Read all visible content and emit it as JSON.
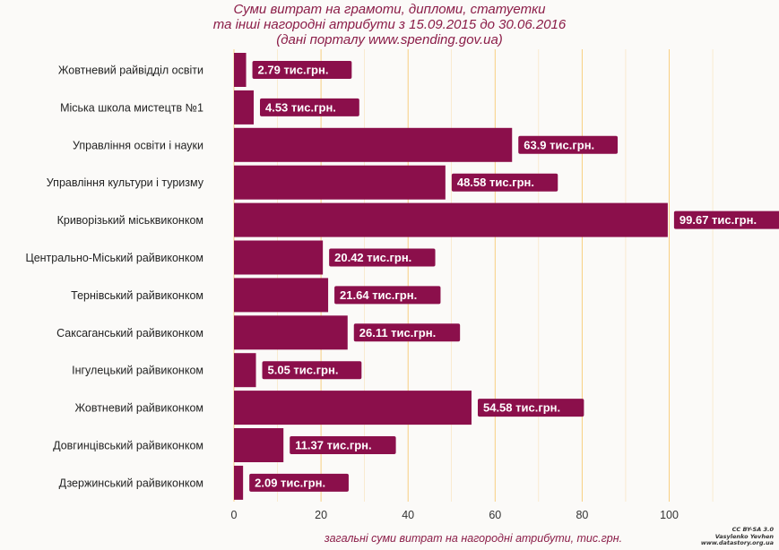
{
  "title_lines": [
    "Суми витрат на грамоти, дипломи, статуетки",
    "та інші нагородні атрибути з 15.09.2015 до 30.06.2016",
    "(дані порталу www.spending.gov.ua)"
  ],
  "credit_lines": [
    "CC BY-SA 3.0",
    "Vasylenko Yevhen",
    "www.datastory.org.ua"
  ],
  "colors": {
    "bar": "#8b0f4b",
    "title": "#8b1d48",
    "grid": "#f5b94a",
    "label_text": "#ffffff"
  },
  "chart_data": {
    "type": "bar",
    "orientation": "horizontal",
    "title": "Суми витрат на грамоти, дипломи, статуетки та інші нагородні атрибути з 15.09.2015 до 30.06.2016 (дані порталу www.spending.gov.ua)",
    "xlabel": "загальні суми витрат на нагородні атрибути, тис.грн.",
    "ylabel": "",
    "xlim": [
      0,
      110
    ],
    "xticks": [
      0,
      20,
      40,
      60,
      80,
      100
    ],
    "grid": true,
    "categories": [
      "Жовтневий райвідділ освіти",
      "Міська школа мистецтв №1",
      "Управління освіти і науки",
      "Управління культури і туризму",
      "Криворізький міськвиконком",
      "Центрально-Міський райвиконком",
      "Тернівський райвиконком",
      "Саксаганський райвиконком",
      "Інгулецький райвиконком",
      "Жовтневий райвиконком",
      "Довгинцівський райвиконком",
      "Дзержинський райвиконком"
    ],
    "values": [
      2.79,
      4.53,
      63.9,
      48.58,
      99.67,
      20.42,
      21.64,
      26.11,
      5.05,
      54.58,
      11.37,
      2.09
    ],
    "data_labels": [
      "2.79 тис.грн.",
      "4.53 тис.грн.",
      "63.9 тис.грн.",
      "48.58 тис.грн.",
      "99.67 тис.грн.",
      "20.42 тис.грн.",
      "21.64 тис.грн.",
      "26.11 тис.грн.",
      "5.05 тис.грн.",
      "54.58 тис.грн.",
      "11.37 тис.грн.",
      "2.09 тис.грн."
    ]
  }
}
